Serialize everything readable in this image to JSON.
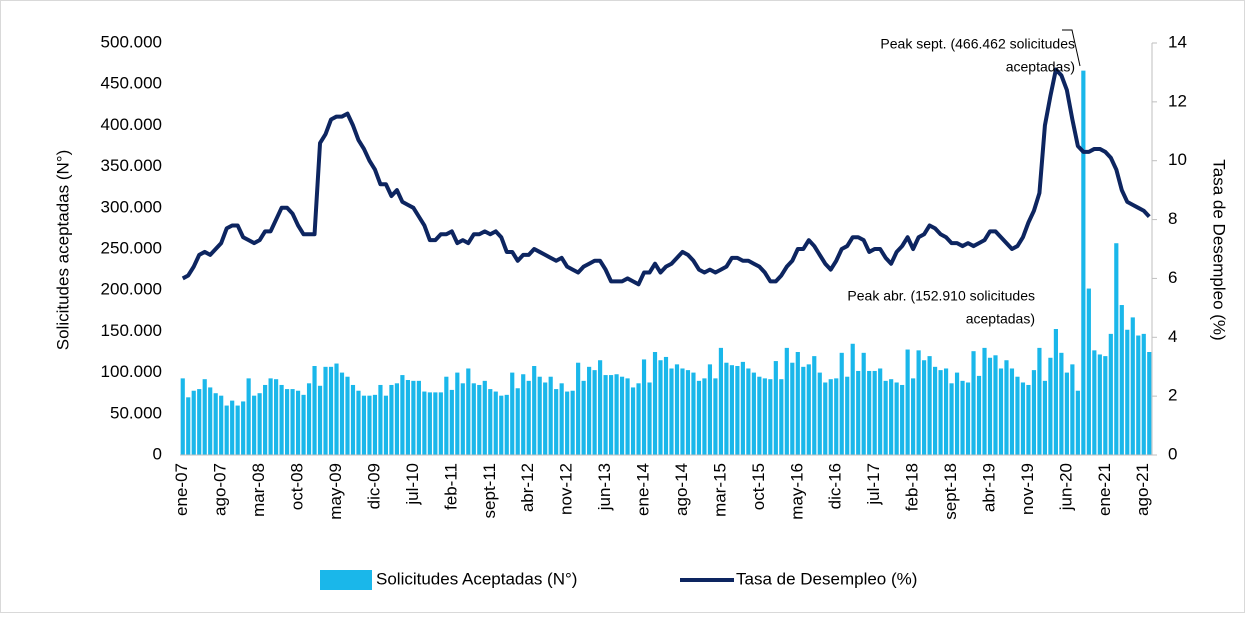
{
  "chart_data": {
    "type": "bar_line",
    "y_label": "Solicitudes aceptadas (N°)",
    "y2_label": "Tasa de Desempleo (%)",
    "legend": "bottom",
    "ylim": [
      0,
      500000
    ],
    "yticks": [
      0,
      {
        "value": 50000,
        "label": "50.000"
      },
      {
        "value": 100000,
        "label": "100.000"
      },
      {
        "value": 150000,
        "label": "150.000"
      },
      {
        "value": 200000,
        "label": "200.000"
      },
      {
        "value": 250000,
        "label": "250.000"
      },
      {
        "value": 300000,
        "label": "300.000"
      },
      {
        "value": 350000,
        "label": "350.000"
      },
      {
        "value": 400000,
        "label": "400.000"
      },
      {
        "value": 450000,
        "label": "450.000"
      },
      {
        "value": 500000,
        "label": "500.000"
      }
    ],
    "y2lim": [
      0,
      14
    ],
    "y2ticks": [
      0,
      2,
      4,
      6,
      8,
      10,
      12,
      14
    ],
    "annotations": [
      {
        "lines": [
          "Peak sept. (466.462 solicitudes",
          "aceptadas)"
        ]
      },
      {
        "lines": [
          "Peak abr. (152.910 solicitudes",
          "aceptadas)"
        ]
      }
    ],
    "categories": [
      "ene-07",
      null,
      null,
      null,
      null,
      null,
      null,
      "ago-07",
      null,
      null,
      null,
      null,
      null,
      null,
      "mar-08",
      null,
      null,
      null,
      null,
      null,
      null,
      "oct-08",
      null,
      null,
      null,
      null,
      null,
      null,
      "may-09",
      null,
      null,
      null,
      null,
      null,
      null,
      "dic-09",
      null,
      null,
      null,
      null,
      null,
      null,
      "jul-10",
      null,
      null,
      null,
      null,
      null,
      null,
      "feb-11",
      null,
      null,
      null,
      null,
      null,
      null,
      "sept-11",
      null,
      null,
      null,
      null,
      null,
      null,
      "abr-12",
      null,
      null,
      null,
      null,
      null,
      null,
      "nov-12",
      null,
      null,
      null,
      null,
      null,
      null,
      "jun-13",
      null,
      null,
      null,
      null,
      null,
      null,
      "ene-14",
      null,
      null,
      null,
      null,
      null,
      null,
      "ago-14",
      null,
      null,
      null,
      null,
      null,
      null,
      "mar-15",
      null,
      null,
      null,
      null,
      null,
      null,
      "oct-15",
      null,
      null,
      null,
      null,
      null,
      null,
      "may-16",
      null,
      null,
      null,
      null,
      null,
      null,
      "dic-16",
      null,
      null,
      null,
      null,
      null,
      null,
      "jul-17",
      null,
      null,
      null,
      null,
      null,
      null,
      "feb-18",
      null,
      null,
      null,
      null,
      null,
      null,
      "sept-18",
      null,
      null,
      null,
      null,
      null,
      null,
      "abr-19",
      null,
      null,
      null,
      null,
      null,
      null,
      "nov-19",
      null,
      null,
      null,
      null,
      null,
      null,
      "jun-20",
      null,
      null,
      null,
      null,
      null,
      null,
      "ene-21",
      null,
      null,
      null,
      null,
      null,
      null,
      "ago-21",
      null
    ],
    "series": [
      {
        "name": "Solicitudes Aceptadas (N°)",
        "type": "bar",
        "color": "#1ab7ea",
        "values": [
          93000,
          70000,
          78000,
          80000,
          92000,
          82000,
          75000,
          72000,
          60000,
          66000,
          60000,
          65000,
          93000,
          72000,
          75000,
          85000,
          93000,
          92000,
          85000,
          80000,
          80000,
          78000,
          73000,
          87000,
          108000,
          84000,
          107000,
          107000,
          111000,
          100000,
          95000,
          85000,
          78000,
          72000,
          72000,
          73000,
          85000,
          72000,
          85000,
          87000,
          97000,
          91000,
          90000,
          90000,
          77000,
          76000,
          76000,
          76000,
          95000,
          79000,
          100000,
          87000,
          105000,
          87000,
          85000,
          90000,
          80000,
          77000,
          72000,
          73000,
          100000,
          81000,
          98000,
          90000,
          108000,
          95000,
          88000,
          95000,
          80000,
          87000,
          77000,
          78000,
          112000,
          90000,
          107000,
          103000,
          115000,
          97000,
          97000,
          98000,
          95000,
          93000,
          82000,
          87000,
          116000,
          88000,
          125000,
          115000,
          119000,
          105000,
          110000,
          105000,
          103000,
          100000,
          90000,
          93000,
          110000,
          93000,
          130000,
          112000,
          109000,
          108000,
          113000,
          105000,
          100000,
          95000,
          93000,
          92000,
          114000,
          92000,
          130000,
          112000,
          125000,
          107000,
          110000,
          120000,
          100000,
          88000,
          92000,
          93000,
          124000,
          95000,
          135000,
          102000,
          124000,
          102000,
          102000,
          105000,
          90000,
          92000,
          88000,
          85000,
          128000,
          93000,
          127000,
          115000,
          120000,
          107000,
          103000,
          105000,
          87000,
          100000,
          90000,
          88000,
          126000,
          96000,
          130000,
          118000,
          121000,
          105000,
          115000,
          105000,
          95000,
          88000,
          85000,
          103000,
          130000,
          90000,
          118000,
          152910,
          124000,
          100000,
          110000,
          78000,
          466462,
          202000,
          127000,
          122000,
          120000,
          147000,
          257000,
          182000,
          152000,
          167000,
          145000,
          147000,
          125000
        ]
      },
      {
        "name": "Tasa de Desempleo (%)",
        "type": "line",
        "axis": "y2",
        "color": "#0d2560",
        "values": [
          6.0,
          6.1,
          6.4,
          6.8,
          6.9,
          6.8,
          7.0,
          7.2,
          7.7,
          7.8,
          7.8,
          7.4,
          7.3,
          7.2,
          7.3,
          7.6,
          7.6,
          8.0,
          8.4,
          8.4,
          8.2,
          7.8,
          7.5,
          7.5,
          7.5,
          10.6,
          10.9,
          11.4,
          11.5,
          11.5,
          11.6,
          11.2,
          10.7,
          10.4,
          10.0,
          9.7,
          9.2,
          9.2,
          8.8,
          9.0,
          8.6,
          8.5,
          8.4,
          8.1,
          7.8,
          7.3,
          7.3,
          7.5,
          7.5,
          7.6,
          7.2,
          7.3,
          7.2,
          7.5,
          7.5,
          7.6,
          7.5,
          7.6,
          7.4,
          6.9,
          6.9,
          6.6,
          6.8,
          6.8,
          7.0,
          6.9,
          6.8,
          6.7,
          6.6,
          6.7,
          6.4,
          6.3,
          6.2,
          6.4,
          6.5,
          6.6,
          6.6,
          6.3,
          5.9,
          5.9,
          5.9,
          6.0,
          5.9,
          5.8,
          6.2,
          6.2,
          6.5,
          6.2,
          6.4,
          6.5,
          6.7,
          6.9,
          6.8,
          6.6,
          6.3,
          6.2,
          6.3,
          6.2,
          6.3,
          6.4,
          6.7,
          6.7,
          6.6,
          6.6,
          6.5,
          6.4,
          6.2,
          5.9,
          5.9,
          6.1,
          6.4,
          6.6,
          7.0,
          7.0,
          7.3,
          7.1,
          6.8,
          6.5,
          6.3,
          6.6,
          7.0,
          7.1,
          7.4,
          7.4,
          7.3,
          6.9,
          7.0,
          7.0,
          6.7,
          6.5,
          6.9,
          7.1,
          7.4,
          7.0,
          7.4,
          7.5,
          7.8,
          7.7,
          7.5,
          7.4,
          7.2,
          7.2,
          7.1,
          7.2,
          7.1,
          7.2,
          7.3,
          7.6,
          7.6,
          7.4,
          7.2,
          7.0,
          7.1,
          7.4,
          7.9,
          8.3,
          8.9,
          11.2,
          12.2,
          13.1,
          12.9,
          12.4,
          11.4,
          10.5,
          10.3,
          10.3,
          10.4,
          10.4,
          10.3,
          10.1,
          9.7,
          9.0,
          8.6,
          8.5,
          8.4,
          8.3,
          8.1
        ]
      }
    ]
  }
}
